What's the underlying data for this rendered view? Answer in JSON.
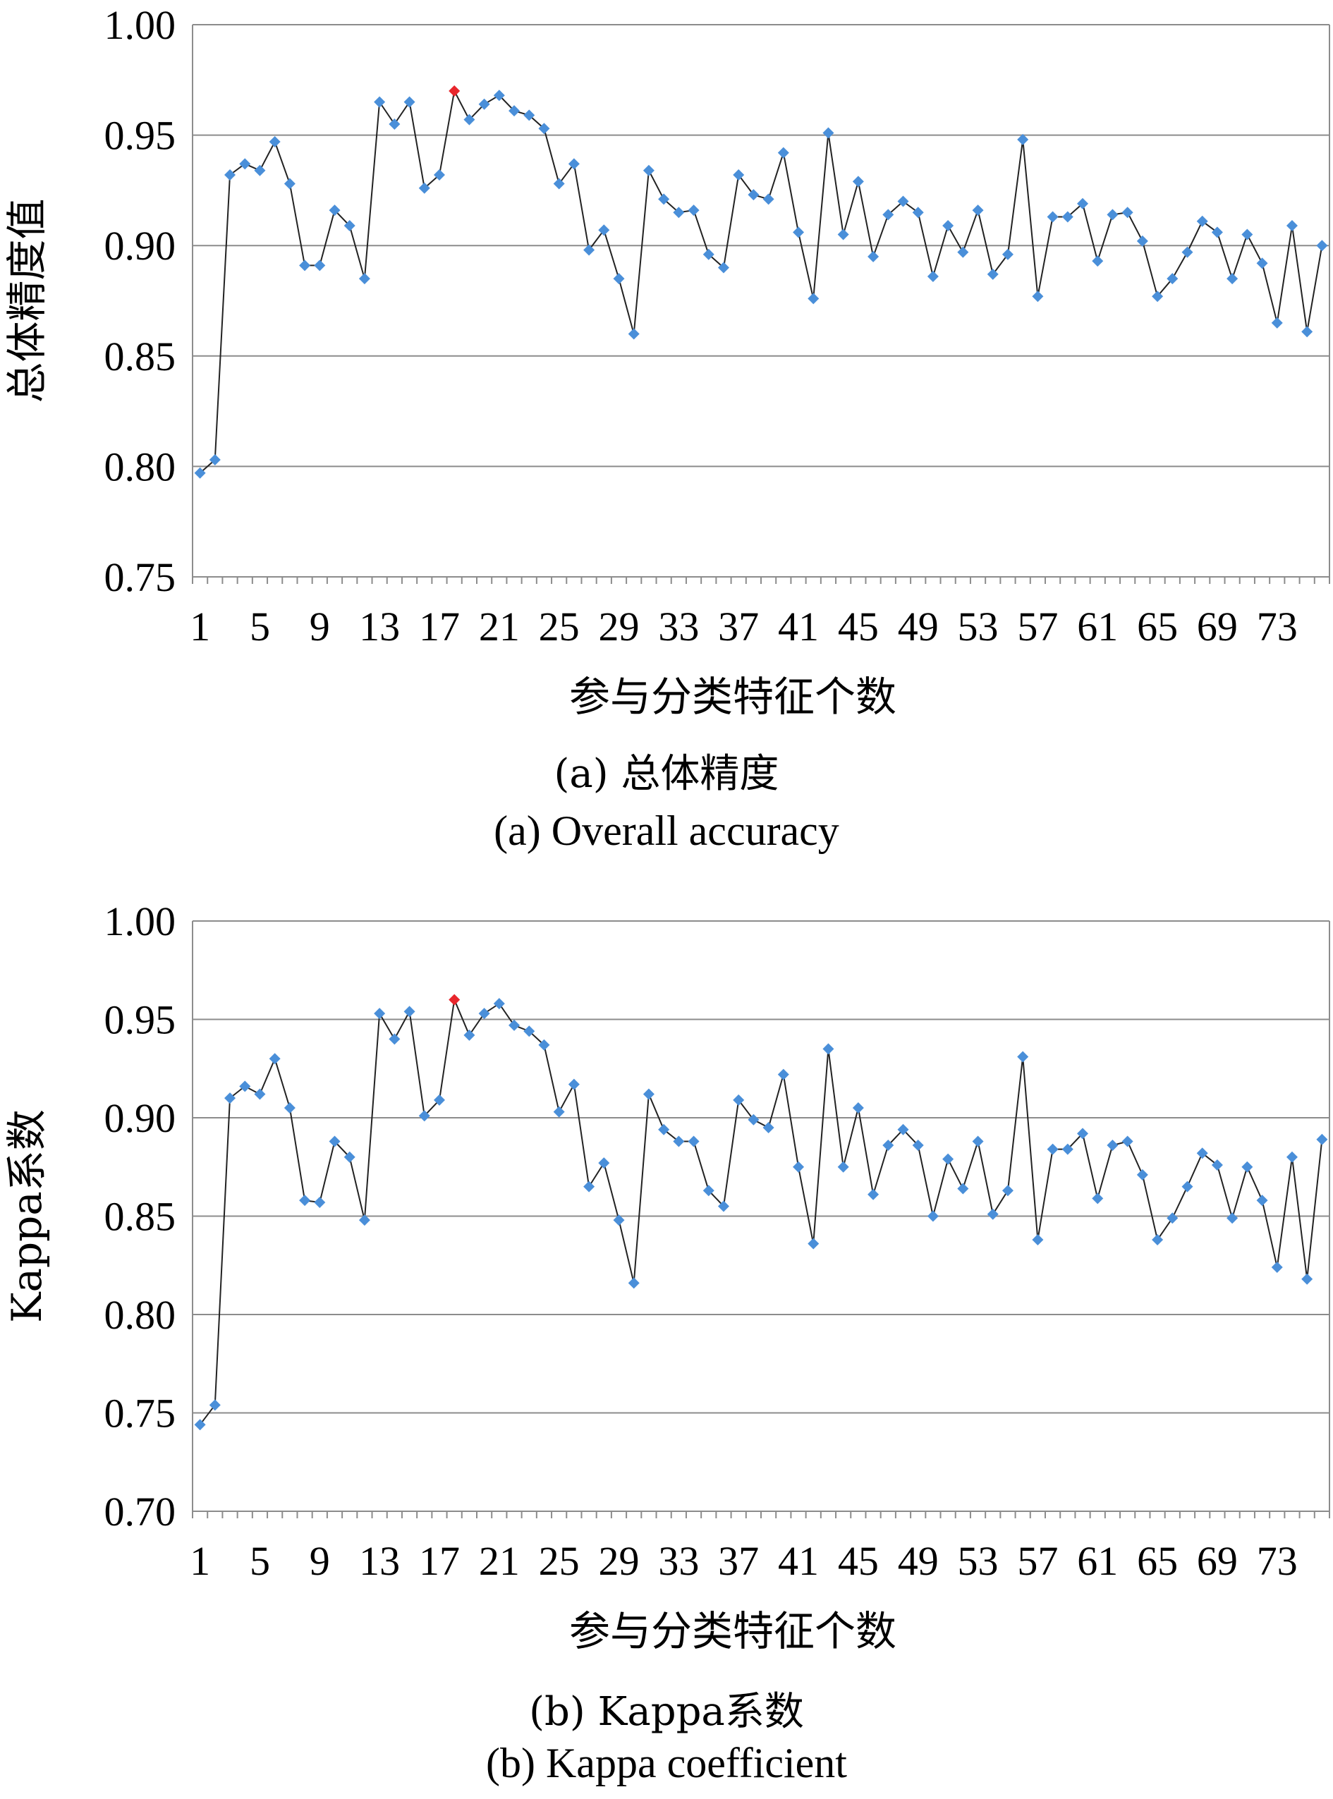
{
  "chart_data": [
    {
      "type": "line",
      "ylabel": "总体精度值",
      "xlabel": "参与分类特征个数",
      "caption_cn": "(a) 总体精度",
      "caption_en": "(a) Overall accuracy",
      "ylim": [
        0.75,
        1.0
      ],
      "yticks": [
        "0.75",
        "0.80",
        "0.85",
        "0.90",
        "0.95",
        "1.00"
      ],
      "xticks": [
        "1",
        "5",
        "9",
        "13",
        "17",
        "21",
        "25",
        "29",
        "33",
        "37",
        "41",
        "45",
        "49",
        "53",
        "57",
        "61",
        "65",
        "69",
        "73"
      ],
      "grid": true,
      "colors": {
        "marker": "#4a8fd9",
        "highlight": "#e8262c",
        "line": "#222222",
        "grid": "#8c8c8c"
      },
      "highlight_index": 17,
      "x": [
        1,
        2,
        3,
        4,
        5,
        6,
        7,
        8,
        9,
        10,
        11,
        12,
        13,
        14,
        15,
        16,
        17,
        18,
        19,
        20,
        21,
        22,
        23,
        24,
        25,
        26,
        27,
        28,
        29,
        30,
        31,
        32,
        33,
        34,
        35,
        36,
        37,
        38,
        39,
        40,
        41,
        42,
        43,
        44,
        45,
        46,
        47,
        48,
        49,
        50,
        51,
        52,
        53,
        54,
        55,
        56,
        57,
        58,
        59,
        60,
        61,
        62,
        63,
        64,
        65,
        66,
        67,
        68,
        69,
        70,
        71,
        72,
        73,
        74,
        75,
        76
      ],
      "values": [
        0.797,
        0.803,
        0.932,
        0.937,
        0.934,
        0.947,
        0.928,
        0.891,
        0.891,
        0.916,
        0.909,
        0.885,
        0.965,
        0.955,
        0.965,
        0.926,
        0.932,
        0.97,
        0.957,
        0.964,
        0.968,
        0.961,
        0.959,
        0.953,
        0.928,
        0.937,
        0.898,
        0.907,
        0.885,
        0.86,
        0.934,
        0.921,
        0.915,
        0.916,
        0.896,
        0.89,
        0.932,
        0.923,
        0.921,
        0.942,
        0.906,
        0.876,
        0.951,
        0.905,
        0.929,
        0.895,
        0.914,
        0.92,
        0.915,
        0.886,
        0.909,
        0.897,
        0.916,
        0.887,
        0.896,
        0.948,
        0.877,
        0.913,
        0.913,
        0.919,
        0.893,
        0.914,
        0.915,
        0.902,
        0.877,
        0.885,
        0.897,
        0.911,
        0.906,
        0.885,
        0.905,
        0.892,
        0.865,
        0.909,
        0.861,
        0.9
      ]
    },
    {
      "type": "line",
      "ylabel": "Kappa系数",
      "xlabel": "参与分类特征个数",
      "caption_cn": "(b) Kappa系数",
      "caption_en": "(b) Kappa coefficient",
      "ylim": [
        0.7,
        1.0
      ],
      "yticks": [
        "0.70",
        "0.75",
        "0.80",
        "0.85",
        "0.90",
        "0.95",
        "1.00"
      ],
      "xticks": [
        "1",
        "5",
        "9",
        "13",
        "17",
        "21",
        "25",
        "29",
        "33",
        "37",
        "41",
        "45",
        "49",
        "53",
        "57",
        "61",
        "65",
        "69",
        "73"
      ],
      "grid": true,
      "colors": {
        "marker": "#4a8fd9",
        "highlight": "#e8262c",
        "line": "#222222",
        "grid": "#8c8c8c"
      },
      "highlight_index": 17,
      "x": [
        1,
        2,
        3,
        4,
        5,
        6,
        7,
        8,
        9,
        10,
        11,
        12,
        13,
        14,
        15,
        16,
        17,
        18,
        19,
        20,
        21,
        22,
        23,
        24,
        25,
        26,
        27,
        28,
        29,
        30,
        31,
        32,
        33,
        34,
        35,
        36,
        37,
        38,
        39,
        40,
        41,
        42,
        43,
        44,
        45,
        46,
        47,
        48,
        49,
        50,
        51,
        52,
        53,
        54,
        55,
        56,
        57,
        58,
        59,
        60,
        61,
        62,
        63,
        64,
        65,
        66,
        67,
        68,
        69,
        70,
        71,
        72,
        73,
        74,
        75,
        76
      ],
      "values": [
        0.744,
        0.754,
        0.91,
        0.916,
        0.912,
        0.93,
        0.905,
        0.858,
        0.857,
        0.888,
        0.88,
        0.848,
        0.953,
        0.94,
        0.954,
        0.901,
        0.909,
        0.96,
        0.942,
        0.953,
        0.958,
        0.947,
        0.944,
        0.937,
        0.903,
        0.917,
        0.865,
        0.877,
        0.848,
        0.816,
        0.912,
        0.894,
        0.888,
        0.888,
        0.863,
        0.855,
        0.909,
        0.899,
        0.895,
        0.922,
        0.875,
        0.836,
        0.935,
        0.875,
        0.905,
        0.861,
        0.886,
        0.894,
        0.886,
        0.85,
        0.879,
        0.864,
        0.888,
        0.851,
        0.863,
        0.931,
        0.838,
        0.884,
        0.884,
        0.892,
        0.859,
        0.886,
        0.888,
        0.871,
        0.838,
        0.849,
        0.865,
        0.882,
        0.876,
        0.849,
        0.875,
        0.858,
        0.824,
        0.88,
        0.818,
        0.889
      ]
    }
  ]
}
